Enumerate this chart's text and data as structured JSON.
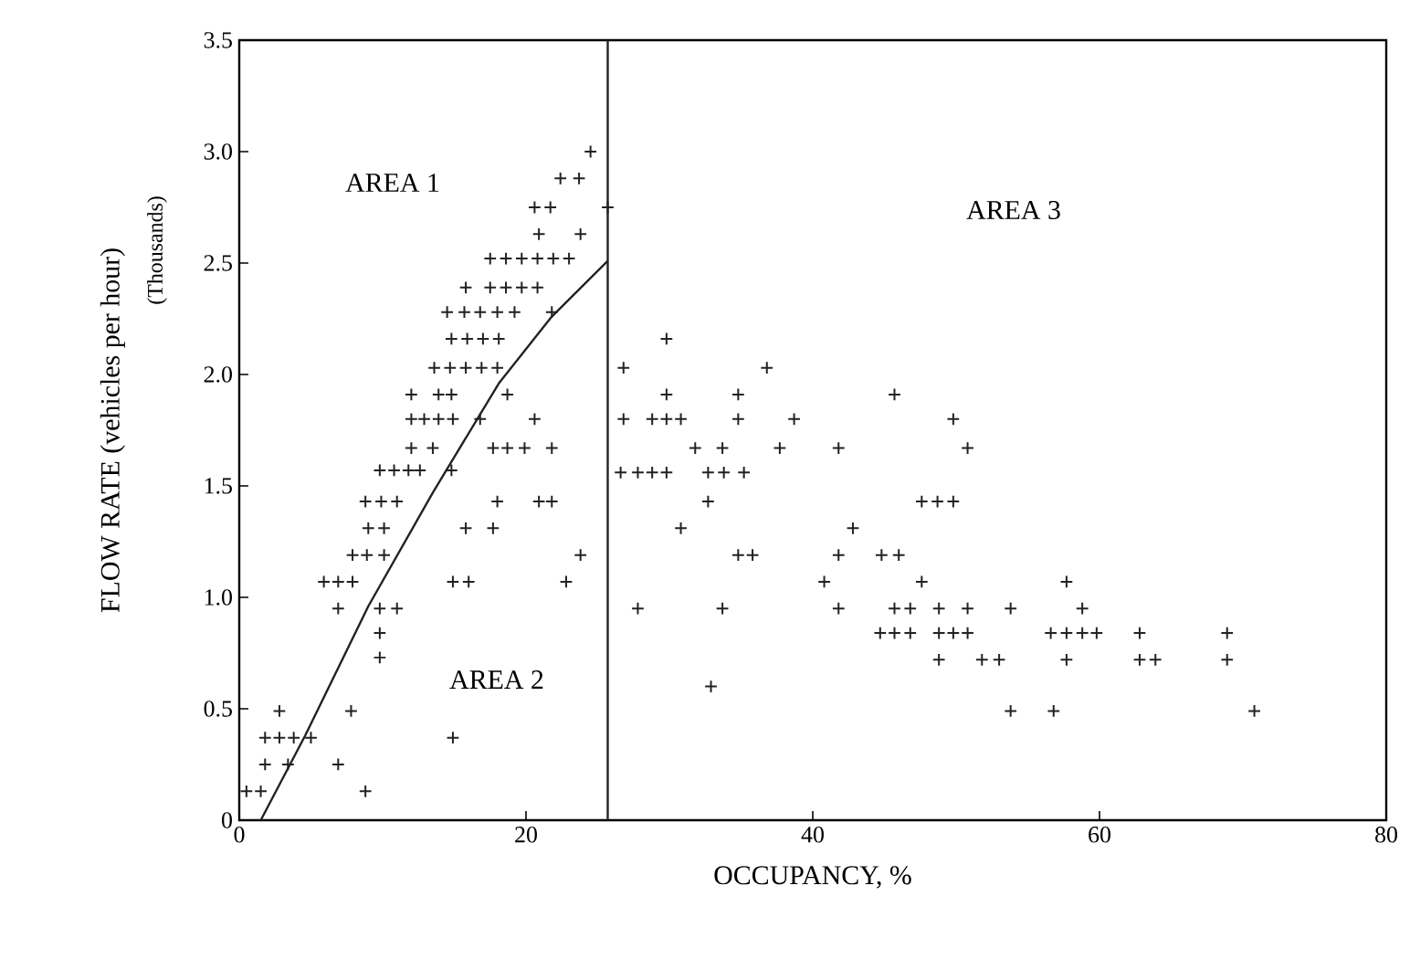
{
  "chart_data": {
    "type": "scatter",
    "xlabel": "OCCUPANCY, %",
    "ylabel": "FLOW RATE (vehicles per hour)",
    "xlim": [
      0,
      80
    ],
    "ylim": [
      0,
      3.5
    ],
    "xticks": [
      0,
      20,
      40,
      60,
      80
    ],
    "yticks": [
      0,
      {
        "value": 0.5,
        "label": "0.5"
      },
      {
        "value": 1,
        "label": "1.0"
      },
      {
        "value": 1.5,
        "label": "1.5"
      },
      {
        "value": 2,
        "label": "2.0"
      },
      {
        "value": 2.5,
        "label": "2.5"
      },
      {
        "value": 3,
        "label": "3.0"
      },
      {
        "value": 3.5,
        "label": "3.5"
      }
    ],
    "grid": false,
    "marker": "cross",
    "ref_lines": [
      {
        "axis": "x",
        "value": 25.7,
        "color": "#222222"
      }
    ],
    "annotations": [
      "AREA 1",
      "AREA 2",
      "AREA 3",
      "(Thousands)"
    ],
    "series": [
      {
        "color": "#222222",
        "x": [
          24.5,
          22.4,
          23.7,
          20.6,
          21.7,
          25.7,
          20.9,
          23.8,
          17.5,
          18.6,
          19.7,
          20.8,
          21.9,
          23.0,
          15.8,
          17.5,
          18.6,
          19.7,
          20.8,
          14.5,
          15.7,
          16.8,
          18.0,
          19.2,
          21.8,
          14.8,
          15.9,
          17.0,
          18.1,
          13.6,
          14.7,
          15.8,
          16.9,
          18.0,
          12.0,
          13.9,
          14.8,
          18.7,
          12.0,
          12.9,
          13.9,
          14.9,
          16.8,
          20.6,
          12.0,
          13.5,
          17.7,
          18.7,
          19.9,
          21.8,
          9.8,
          10.8,
          11.8,
          12.6,
          14.8,
          8.8,
          9.9,
          11.0,
          18.0,
          20.9,
          21.8,
          9.0,
          10.1,
          15.8,
          17.7,
          7.9,
          8.9,
          10.1,
          23.8,
          5.9,
          6.9,
          7.9,
          14.9,
          16.0,
          22.8,
          6.9,
          9.8,
          11.0,
          9.8,
          9.8,
          2.8,
          7.8,
          1.8,
          2.8,
          3.8,
          5.0,
          14.9,
          1.8,
          3.4,
          6.9,
          0.5,
          1.5,
          8.8,
          29.8,
          26.8,
          36.8,
          29.8,
          34.8,
          45.7,
          26.8,
          28.8,
          29.8,
          30.8,
          34.8,
          38.7,
          49.8,
          31.8,
          33.7,
          37.7,
          41.8,
          50.8,
          26.6,
          27.8,
          28.8,
          29.8,
          32.7,
          33.8,
          35.2,
          32.7,
          47.6,
          48.7,
          49.8,
          30.8,
          42.8,
          34.8,
          35.8,
          41.8,
          44.8,
          46.0,
          40.8,
          47.6,
          57.7,
          27.8,
          33.7,
          41.8,
          45.7,
          46.8,
          48.8,
          50.8,
          53.8,
          58.8,
          44.7,
          45.7,
          46.8,
          48.8,
          49.8,
          50.8,
          56.6,
          57.7,
          58.8,
          59.8,
          62.8,
          68.9,
          48.8,
          51.8,
          53.0,
          57.7,
          62.8,
          63.9,
          68.9,
          32.9,
          53.8,
          56.8,
          70.8
        ],
        "values": [
          3.0,
          2.88,
          2.88,
          2.75,
          2.75,
          2.75,
          2.63,
          2.63,
          2.52,
          2.52,
          2.52,
          2.52,
          2.52,
          2.52,
          2.39,
          2.39,
          2.39,
          2.39,
          2.39,
          2.28,
          2.28,
          2.28,
          2.28,
          2.28,
          2.28,
          2.16,
          2.16,
          2.16,
          2.16,
          2.03,
          2.03,
          2.03,
          2.03,
          2.03,
          1.91,
          1.91,
          1.91,
          1.91,
          1.8,
          1.8,
          1.8,
          1.8,
          1.8,
          1.8,
          1.67,
          1.67,
          1.67,
          1.67,
          1.67,
          1.67,
          1.57,
          1.57,
          1.57,
          1.57,
          1.57,
          1.43,
          1.43,
          1.43,
          1.43,
          1.43,
          1.43,
          1.31,
          1.31,
          1.31,
          1.31,
          1.19,
          1.19,
          1.19,
          1.19,
          1.07,
          1.07,
          1.07,
          1.07,
          1.07,
          1.07,
          0.95,
          0.95,
          0.95,
          0.84,
          0.73,
          0.49,
          0.49,
          0.37,
          0.37,
          0.37,
          0.37,
          0.37,
          0.25,
          0.25,
          0.25,
          0.13,
          0.13,
          0.13,
          2.16,
          2.03,
          2.03,
          1.91,
          1.91,
          1.91,
          1.8,
          1.8,
          1.8,
          1.8,
          1.8,
          1.8,
          1.8,
          1.67,
          1.67,
          1.67,
          1.67,
          1.67,
          1.56,
          1.56,
          1.56,
          1.56,
          1.56,
          1.56,
          1.56,
          1.43,
          1.43,
          1.43,
          1.43,
          1.31,
          1.31,
          1.19,
          1.19,
          1.19,
          1.19,
          1.19,
          1.07,
          1.07,
          1.07,
          0.95,
          0.95,
          0.95,
          0.95,
          0.95,
          0.95,
          0.95,
          0.95,
          0.95,
          0.84,
          0.84,
          0.84,
          0.84,
          0.84,
          0.84,
          0.84,
          0.84,
          0.84,
          0.84,
          0.84,
          0.84,
          0.72,
          0.72,
          0.72,
          0.72,
          0.72,
          0.72,
          0.72,
          0.6,
          0.49,
          0.49,
          0.49
        ]
      },
      {
        "type": "line",
        "color": "#222222",
        "marker": "none",
        "x": [
          1.5,
          4.6,
          9.0,
          13.5,
          18.1,
          21.8,
          25.7
        ],
        "values": [
          0,
          0.38,
          0.96,
          1.47,
          1.96,
          2.26,
          2.51
        ]
      }
    ]
  }
}
